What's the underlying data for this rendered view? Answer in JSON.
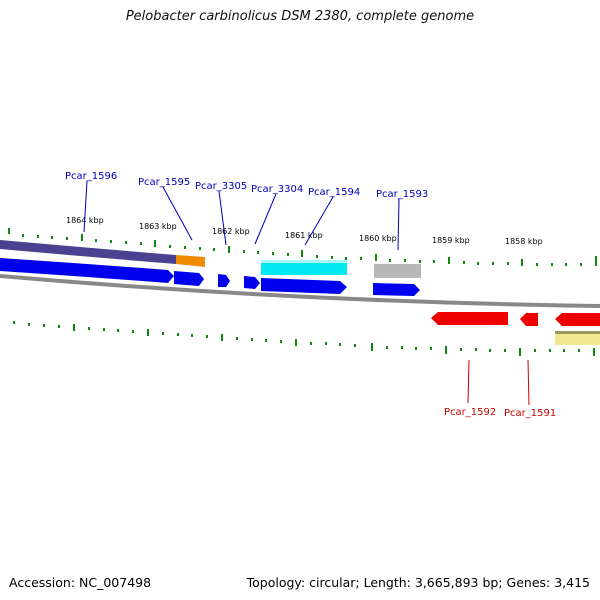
{
  "title": "Pelobacter carbinolicus DSM 2380, complete genome",
  "footer": {
    "accession": "Accession: NC_007498",
    "topology": "Topology: circular; Length: 3,665,893 bp; Genes: 3,415"
  },
  "scale_ticks": [
    "1864 kbp",
    "1863 kbp",
    "1862 kbp",
    "1861 kbp",
    "1860 kbp",
    "1859 kbp",
    "1858 kbp"
  ],
  "gene_labels_forward": [
    "Pcar_1596",
    "Pcar_1595",
    "Pcar_3305",
    "Pcar_3304",
    "Pcar_1594",
    "Pcar_1593"
  ],
  "gene_labels_reverse": [
    "Pcar_1592",
    "Pcar_1591"
  ],
  "colors": {
    "forward_gene": "#0000ee",
    "reverse_gene": "#ee0000",
    "label_forward": "#0000bb",
    "label_reverse": "#cc0000",
    "tick_green": "#118811",
    "backbone": "#888888",
    "feature_purple": "#4a4290",
    "feature_orange": "#f08a00",
    "feature_cyan": "#00e8f0",
    "feature_gray": "#b8b8b8",
    "feature_yellow": "#f0e890"
  }
}
